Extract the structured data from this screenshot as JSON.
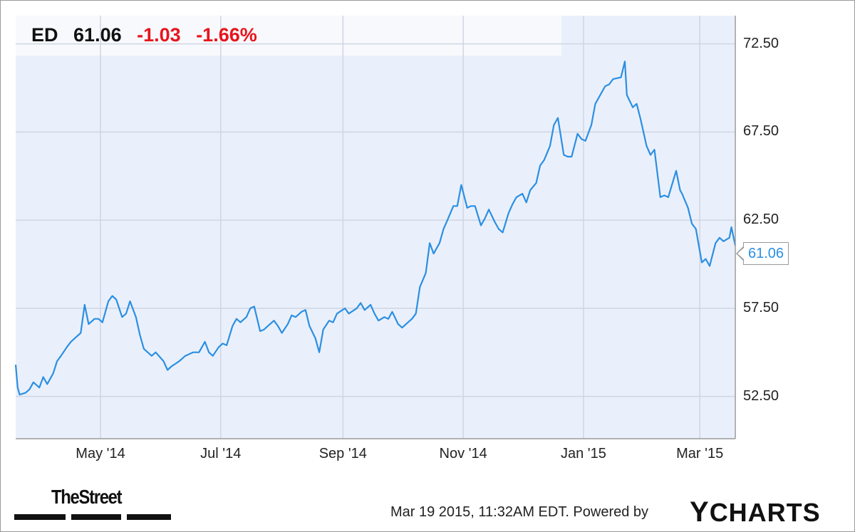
{
  "header": {
    "ticker": "ED",
    "price": "61.06",
    "change": "-1.03",
    "change_pct": "-1.66%"
  },
  "last_value_label": "61.06",
  "footer": {
    "date_text": "Mar 19 2015, 11:32AM EDT.  Powered by",
    "brand_y": "Y",
    "brand_rest": "CHARTS",
    "publisher": "TheStreet"
  },
  "colors": {
    "line": "#2b8fe3",
    "plot_bg": "#eaf0fb",
    "grid": "#cfd6e2",
    "negative": "#e8141c"
  },
  "chart_data": {
    "type": "line",
    "title": "",
    "xlabel": "",
    "ylabel": "",
    "ylim": [
      50.1,
      74.1
    ],
    "xlim": [
      "2014-03-19",
      "2015-03-19"
    ],
    "y_ticks": [
      "52.50",
      "57.50",
      "62.50",
      "67.50",
      "72.50"
    ],
    "x_ticks": [
      {
        "label": "May '14",
        "date": "2014-05-01"
      },
      {
        "label": "Jul '14",
        "date": "2014-07-01"
      },
      {
        "label": "Sep '14",
        "date": "2014-09-01"
      },
      {
        "label": "Nov '14",
        "date": "2014-11-01"
      },
      {
        "label": "Jan '15",
        "date": "2015-01-01"
      },
      {
        "label": "Mar '15",
        "date": "2015-03-01"
      }
    ],
    "grid": true,
    "series": [
      {
        "points": [
          [
            "2014-03-19",
            54.3
          ],
          [
            "2014-03-20",
            53.0
          ],
          [
            "2014-03-21",
            52.6
          ],
          [
            "2014-03-24",
            52.7
          ],
          [
            "2014-03-26",
            52.9
          ],
          [
            "2014-03-28",
            53.3
          ],
          [
            "2014-03-31",
            53.0
          ],
          [
            "2014-04-02",
            53.6
          ],
          [
            "2014-04-04",
            53.2
          ],
          [
            "2014-04-07",
            53.8
          ],
          [
            "2014-04-09",
            54.5
          ],
          [
            "2014-04-11",
            54.8
          ],
          [
            "2014-04-14",
            55.3
          ],
          [
            "2014-04-16",
            55.6
          ],
          [
            "2014-04-18",
            55.8
          ],
          [
            "2014-04-21",
            56.1
          ],
          [
            "2014-04-23",
            57.7
          ],
          [
            "2014-04-25",
            56.6
          ],
          [
            "2014-04-28",
            56.9
          ],
          [
            "2014-04-30",
            56.9
          ],
          [
            "2014-05-02",
            56.7
          ],
          [
            "2014-05-05",
            57.9
          ],
          [
            "2014-05-07",
            58.2
          ],
          [
            "2014-05-09",
            58.0
          ],
          [
            "2014-05-12",
            57.0
          ],
          [
            "2014-05-14",
            57.2
          ],
          [
            "2014-05-16",
            57.9
          ],
          [
            "2014-05-19",
            57.0
          ],
          [
            "2014-05-21",
            56.0
          ],
          [
            "2014-05-23",
            55.2
          ],
          [
            "2014-05-27",
            54.8
          ],
          [
            "2014-05-29",
            55.0
          ],
          [
            "2014-06-02",
            54.5
          ],
          [
            "2014-06-04",
            54.0
          ],
          [
            "2014-06-06",
            54.2
          ],
          [
            "2014-06-10",
            54.5
          ],
          [
            "2014-06-13",
            54.8
          ],
          [
            "2014-06-17",
            55.0
          ],
          [
            "2014-06-20",
            55.0
          ],
          [
            "2014-06-23",
            55.6
          ],
          [
            "2014-06-25",
            55.0
          ],
          [
            "2014-06-27",
            54.8
          ],
          [
            "2014-06-30",
            55.3
          ],
          [
            "2014-07-02",
            55.5
          ],
          [
            "2014-07-04",
            55.4
          ],
          [
            "2014-07-07",
            56.5
          ],
          [
            "2014-07-09",
            56.9
          ],
          [
            "2014-07-11",
            56.7
          ],
          [
            "2014-07-14",
            57.0
          ],
          [
            "2014-07-16",
            57.5
          ],
          [
            "2014-07-18",
            57.6
          ],
          [
            "2014-07-21",
            56.2
          ],
          [
            "2014-07-23",
            56.3
          ],
          [
            "2014-07-25",
            56.5
          ],
          [
            "2014-07-28",
            56.8
          ],
          [
            "2014-07-30",
            56.5
          ],
          [
            "2014-08-01",
            56.1
          ],
          [
            "2014-08-04",
            56.6
          ],
          [
            "2014-08-06",
            57.1
          ],
          [
            "2014-08-08",
            57.0
          ],
          [
            "2014-08-11",
            57.3
          ],
          [
            "2014-08-13",
            57.4
          ],
          [
            "2014-08-15",
            56.5
          ],
          [
            "2014-08-18",
            55.8
          ],
          [
            "2014-08-20",
            55.0
          ],
          [
            "2014-08-22",
            56.3
          ],
          [
            "2014-08-25",
            56.8
          ],
          [
            "2014-08-27",
            56.7
          ],
          [
            "2014-08-29",
            57.2
          ],
          [
            "2014-09-02",
            57.5
          ],
          [
            "2014-09-04",
            57.2
          ],
          [
            "2014-09-08",
            57.5
          ],
          [
            "2014-09-10",
            57.8
          ],
          [
            "2014-09-12",
            57.4
          ],
          [
            "2014-09-15",
            57.7
          ],
          [
            "2014-09-17",
            57.2
          ],
          [
            "2014-09-19",
            56.8
          ],
          [
            "2014-09-22",
            57.0
          ],
          [
            "2014-09-24",
            56.9
          ],
          [
            "2014-09-26",
            57.3
          ],
          [
            "2014-09-29",
            56.6
          ],
          [
            "2014-10-01",
            56.4
          ],
          [
            "2014-10-03",
            56.6
          ],
          [
            "2014-10-06",
            56.9
          ],
          [
            "2014-10-08",
            57.2
          ],
          [
            "2014-10-10",
            58.7
          ],
          [
            "2014-10-13",
            59.5
          ],
          [
            "2014-10-15",
            61.2
          ],
          [
            "2014-10-17",
            60.6
          ],
          [
            "2014-10-20",
            61.2
          ],
          [
            "2014-10-22",
            62.0
          ],
          [
            "2014-10-24",
            62.5
          ],
          [
            "2014-10-27",
            63.3
          ],
          [
            "2014-10-29",
            63.3
          ],
          [
            "2014-10-31",
            64.5
          ],
          [
            "2014-11-03",
            63.2
          ],
          [
            "2014-11-05",
            63.3
          ],
          [
            "2014-11-07",
            63.3
          ],
          [
            "2014-11-10",
            62.2
          ],
          [
            "2014-11-12",
            62.6
          ],
          [
            "2014-11-14",
            63.1
          ],
          [
            "2014-11-17",
            62.4
          ],
          [
            "2014-11-19",
            62.0
          ],
          [
            "2014-11-21",
            61.8
          ],
          [
            "2014-11-24",
            62.9
          ],
          [
            "2014-11-26",
            63.4
          ],
          [
            "2014-11-28",
            63.8
          ],
          [
            "2014-12-01",
            64.0
          ],
          [
            "2014-12-03",
            63.5
          ],
          [
            "2014-12-05",
            64.2
          ],
          [
            "2014-12-08",
            64.6
          ],
          [
            "2014-12-10",
            65.6
          ],
          [
            "2014-12-12",
            65.9
          ],
          [
            "2014-12-15",
            66.7
          ],
          [
            "2014-12-17",
            67.9
          ],
          [
            "2014-12-19",
            68.3
          ],
          [
            "2014-12-22",
            66.2
          ],
          [
            "2014-12-24",
            66.1
          ],
          [
            "2014-12-26",
            66.1
          ],
          [
            "2014-12-29",
            67.4
          ],
          [
            "2014-12-31",
            67.1
          ],
          [
            "2015-01-02",
            67.0
          ],
          [
            "2015-01-05",
            67.9
          ],
          [
            "2015-01-07",
            69.1
          ],
          [
            "2015-01-09",
            69.5
          ],
          [
            "2015-01-12",
            70.1
          ],
          [
            "2015-01-14",
            70.2
          ],
          [
            "2015-01-16",
            70.5
          ],
          [
            "2015-01-20",
            70.6
          ],
          [
            "2015-01-22",
            71.5
          ],
          [
            "2015-01-23",
            69.6
          ],
          [
            "2015-01-26",
            68.9
          ],
          [
            "2015-01-28",
            69.1
          ],
          [
            "2015-01-30",
            68.2
          ],
          [
            "2015-02-02",
            66.7
          ],
          [
            "2015-02-04",
            66.2
          ],
          [
            "2015-02-06",
            66.5
          ],
          [
            "2015-02-09",
            63.8
          ],
          [
            "2015-02-11",
            63.9
          ],
          [
            "2015-02-13",
            63.8
          ],
          [
            "2015-02-17",
            65.3
          ],
          [
            "2015-02-19",
            64.2
          ],
          [
            "2015-02-20",
            64.0
          ],
          [
            "2015-02-23",
            63.2
          ],
          [
            "2015-02-25",
            62.3
          ],
          [
            "2015-02-27",
            62.0
          ],
          [
            "2015-03-02",
            60.1
          ],
          [
            "2015-03-04",
            60.3
          ],
          [
            "2015-03-06",
            59.9
          ],
          [
            "2015-03-09",
            61.2
          ],
          [
            "2015-03-11",
            61.5
          ],
          [
            "2015-03-13",
            61.3
          ],
          [
            "2015-03-16",
            61.5
          ],
          [
            "2015-03-17",
            62.1
          ],
          [
            "2015-03-19",
            61.06
          ]
        ]
      }
    ]
  }
}
